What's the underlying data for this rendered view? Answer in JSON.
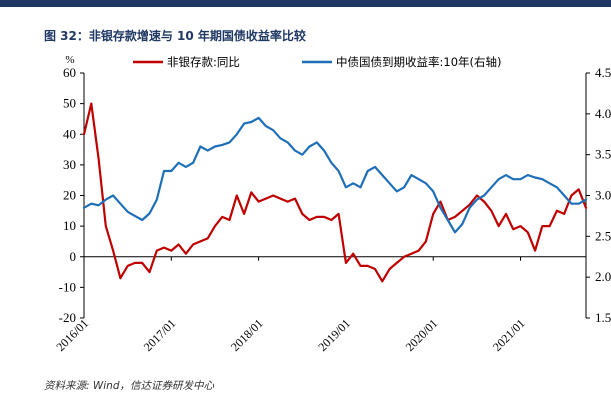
{
  "header": {
    "figure_title": "图 32：非银存款增速与 10 年期国债收益率比较",
    "source": "资料来源: Wind，信达证券研发中心"
  },
  "colors": {
    "header_bar": "#1f3864",
    "title": "#1f3864",
    "deposit_series": "#c00000",
    "bond_series": "#1f6fb8"
  },
  "chart_data": {
    "type": "line",
    "y_unit_label": "%",
    "x_tick_labels": [
      "2016/01",
      "2017/01",
      "2018/01",
      "2019/01",
      "2020/01",
      "2021/01"
    ],
    "x_range": [
      "2016/01",
      "2021/10"
    ],
    "y_left": {
      "range": [
        -20,
        60
      ],
      "ticks": [
        -20,
        -10,
        0,
        10,
        20,
        30,
        40,
        50,
        60
      ]
    },
    "y_right": {
      "range": [
        1.5,
        4.5
      ],
      "ticks": [
        "1.5",
        "2.0",
        "2.5",
        "3.0",
        "3.5",
        "4.0",
        "4.5"
      ]
    },
    "grid": false,
    "legend_position": "top",
    "series": [
      {
        "name": "非银存款:同比",
        "axis": "left",
        "color": "#c00000",
        "x": [
          "2016/01",
          "2016/02",
          "2016/03",
          "2016/04",
          "2016/05",
          "2016/06",
          "2016/07",
          "2016/08",
          "2016/09",
          "2016/10",
          "2016/11",
          "2016/12",
          "2017/01",
          "2017/02",
          "2017/03",
          "2017/04",
          "2017/05",
          "2017/06",
          "2017/07",
          "2017/08",
          "2017/09",
          "2017/10",
          "2017/11",
          "2017/12",
          "2018/01",
          "2018/02",
          "2018/03",
          "2018/04",
          "2018/05",
          "2018/06",
          "2018/07",
          "2018/08",
          "2018/09",
          "2018/10",
          "2018/11",
          "2018/12",
          "2019/01",
          "2019/02",
          "2019/03",
          "2019/04",
          "2019/05",
          "2019/06",
          "2019/07",
          "2019/08",
          "2019/09",
          "2019/10",
          "2019/11",
          "2019/12",
          "2020/01",
          "2020/02",
          "2020/03",
          "2020/04",
          "2020/05",
          "2020/06",
          "2020/07",
          "2020/08",
          "2020/09",
          "2020/10",
          "2020/11",
          "2020/12",
          "2021/01",
          "2021/02",
          "2021/03",
          "2021/04",
          "2021/05",
          "2021/06",
          "2021/07",
          "2021/08",
          "2021/09",
          "2021/10"
        ],
        "values": [
          40,
          50,
          32,
          10,
          2,
          -7,
          -3,
          -2,
          -2,
          -5,
          2,
          3,
          2,
          4,
          1,
          4,
          5,
          6,
          10,
          13,
          12,
          20,
          14,
          21,
          18,
          19,
          20,
          19,
          18,
          19,
          14,
          12,
          13,
          13,
          12,
          14,
          -2,
          1,
          -3,
          -3,
          -4,
          -8,
          -4,
          -2,
          0,
          1,
          2,
          5,
          14,
          18,
          12,
          13,
          15,
          17,
          20,
          18,
          15,
          10,
          14,
          9,
          10,
          8,
          2,
          10,
          10,
          15,
          14,
          20,
          22,
          16
        ]
      },
      {
        "name": "中债国债到期收益率:10年(右轴)",
        "axis": "right",
        "color": "#1f6fb8",
        "x": [
          "2016/01",
          "2016/02",
          "2016/03",
          "2016/04",
          "2016/05",
          "2016/06",
          "2016/07",
          "2016/08",
          "2016/09",
          "2016/10",
          "2016/11",
          "2016/12",
          "2017/01",
          "2017/02",
          "2017/03",
          "2017/04",
          "2017/05",
          "2017/06",
          "2017/07",
          "2017/08",
          "2017/09",
          "2017/10",
          "2017/11",
          "2017/12",
          "2018/01",
          "2018/02",
          "2018/03",
          "2018/04",
          "2018/05",
          "2018/06",
          "2018/07",
          "2018/08",
          "2018/09",
          "2018/10",
          "2018/11",
          "2018/12",
          "2019/01",
          "2019/02",
          "2019/03",
          "2019/04",
          "2019/05",
          "2019/06",
          "2019/07",
          "2019/08",
          "2019/09",
          "2019/10",
          "2019/11",
          "2019/12",
          "2020/01",
          "2020/02",
          "2020/03",
          "2020/04",
          "2020/05",
          "2020/06",
          "2020/07",
          "2020/08",
          "2020/09",
          "2020/10",
          "2020/11",
          "2020/12",
          "2021/01",
          "2021/02",
          "2021/03",
          "2021/04",
          "2021/05",
          "2021/06",
          "2021/07",
          "2021/08",
          "2021/09",
          "2021/10"
        ],
        "values": [
          2.85,
          2.9,
          2.88,
          2.95,
          3.0,
          2.9,
          2.8,
          2.75,
          2.7,
          2.78,
          2.95,
          3.3,
          3.3,
          3.4,
          3.35,
          3.4,
          3.6,
          3.55,
          3.6,
          3.62,
          3.65,
          3.75,
          3.88,
          3.9,
          3.95,
          3.85,
          3.8,
          3.7,
          3.65,
          3.55,
          3.5,
          3.6,
          3.65,
          3.55,
          3.4,
          3.3,
          3.1,
          3.15,
          3.1,
          3.3,
          3.35,
          3.25,
          3.15,
          3.05,
          3.1,
          3.25,
          3.2,
          3.15,
          3.05,
          2.85,
          2.7,
          2.55,
          2.65,
          2.85,
          2.95,
          3.0,
          3.1,
          3.2,
          3.25,
          3.2,
          3.2,
          3.25,
          3.22,
          3.2,
          3.15,
          3.1,
          3.0,
          2.9,
          2.9,
          2.95
        ]
      }
    ]
  }
}
